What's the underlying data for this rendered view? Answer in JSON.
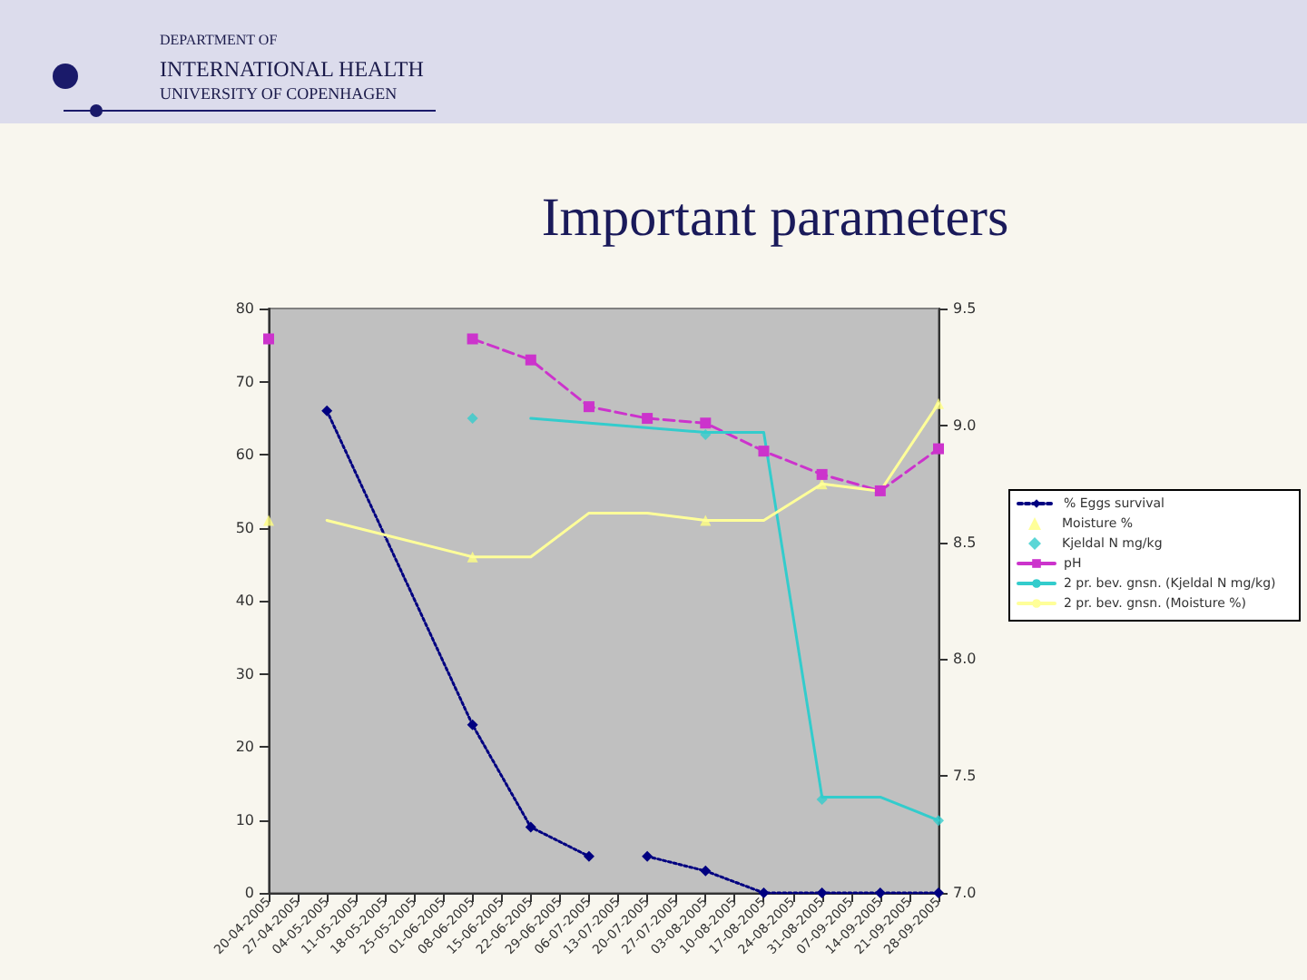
{
  "chart_data": {
    "type": "line",
    "title": "Important parameters",
    "annotations": [
      "DEPARTMENT OF",
      "INTERNATIONAL HEALTH",
      "UNIVERSITY OF COPENHAGEN"
    ],
    "categories": [
      "20-04-2005",
      "27-04-2005",
      "04-05-2005",
      "11-05-2005",
      "18-05-2005",
      "25-05-2005",
      "01-06-2005",
      "08-06-2005",
      "15-06-2005",
      "22-06-2005",
      "29-06-2005",
      "06-07-2005",
      "13-07-2005",
      "20-07-2005",
      "27-07-2005",
      "03-08-2005",
      "10-08-2005",
      "17-08-2005",
      "24-08-2005",
      "31-08-2005",
      "07-09-2005",
      "14-09-2005",
      "21-09-2005",
      "28-09-2005"
    ],
    "series": [
      {
        "name": "% Eggs survival",
        "color": "#000080",
        "type": "line",
        "marker": "diamond",
        "line_style": "dotted",
        "x": [
          "04-05-2005",
          "08-06-2005",
          "22-06-2005",
          "06-07-2005",
          "13-07-2005",
          "20-07-2005",
          "03-08-2005",
          "17-08-2005",
          "31-08-2005",
          "14-09-2005",
          "28-09-2005"
        ],
        "values": [
          66,
          23,
          9,
          5,
          null,
          5,
          3,
          0,
          0,
          0,
          0
        ]
      },
      {
        "name": "Moisture %",
        "color": "#ffff80",
        "type": "scatter",
        "marker": "triangle",
        "x": [
          "20-04-2005",
          "08-06-2005",
          "03-08-2005",
          "31-08-2005",
          "28-09-2005"
        ],
        "values": [
          51,
          46,
          51,
          56,
          67
        ]
      },
      {
        "name": "Kjeldal N mg/kg",
        "color": "#33cccc",
        "type": "scatter",
        "marker": "diamond",
        "axis": "y2",
        "x": [
          "08-06-2005",
          "03-08-2005",
          "31-08-2005",
          "28-09-2005"
        ],
        "values": [
          9.03,
          8.96,
          7.4,
          7.31
        ]
      },
      {
        "name": "pH",
        "color": "#cc33cc",
        "type": "line",
        "marker": "square",
        "line_style": "dashed",
        "axis": "y2",
        "x": [
          "20-04-2005",
          "27-04-2005",
          "08-06-2005",
          "22-06-2005",
          "06-07-2005",
          "20-07-2005",
          "03-08-2005",
          "17-08-2005",
          "31-08-2005",
          "14-09-2005",
          "28-09-2005"
        ],
        "values": [
          9.37,
          null,
          9.37,
          9.28,
          9.08,
          9.03,
          9.01,
          8.89,
          8.79,
          8.72,
          8.9
        ]
      },
      {
        "name": "2 pr. bev. gnsn. (Kjeldal N mg/kg)",
        "color": "#33cccc",
        "type": "line",
        "marker": "none",
        "line_style": "solid",
        "axis": "y2",
        "x": [
          "22-06-2005",
          "03-08-2005",
          "17-08-2005",
          "31-08-2005",
          "14-09-2005",
          "28-09-2005"
        ],
        "values": [
          9.03,
          8.97,
          8.97,
          7.41,
          7.41,
          7.31
        ]
      },
      {
        "name": "2 pr. bev. gnsn. (Moisture %)",
        "color": "#ffff99",
        "type": "line",
        "marker": "none",
        "line_style": "solid",
        "x": [
          "04-05-2005",
          "08-06-2005",
          "22-06-2005",
          "06-07-2005",
          "20-07-2005",
          "03-08-2005",
          "17-08-2005",
          "31-08-2005",
          "14-09-2005",
          "28-09-2005"
        ],
        "values": [
          51,
          46,
          46,
          52,
          52,
          51,
          51,
          56,
          55,
          67
        ]
      }
    ],
    "ylim": [
      0,
      80
    ],
    "yticks": [
      0,
      10,
      20,
      30,
      40,
      50,
      60,
      70,
      80
    ],
    "y2lim": [
      7,
      9.5
    ],
    "y2ticks": [
      {
        "value": 7,
        "label": "7.0"
      },
      7.5,
      {
        "value": 8,
        "label": "8.0"
      },
      8.5,
      {
        "value": 9,
        "label": "9.0"
      },
      9.5
    ],
    "grid": false,
    "legend": "right"
  }
}
